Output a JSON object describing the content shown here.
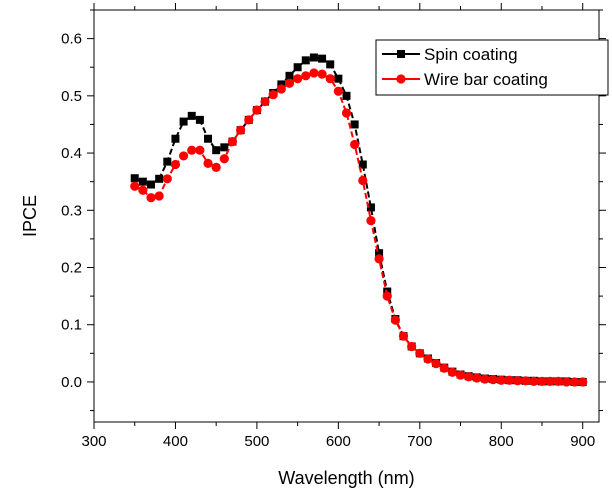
{
  "chart_data": {
    "type": "line",
    "title": "",
    "xlabel": "Wavelength (nm)",
    "ylabel": "IPCE",
    "xlim": [
      300,
      920
    ],
    "ylim": [
      -0.07,
      0.65
    ],
    "xticks": [
      300,
      400,
      500,
      600,
      700,
      800,
      900
    ],
    "yticks": [
      0.0,
      0.1,
      0.2,
      0.3,
      0.4,
      0.5,
      0.6
    ],
    "xtick_labels": [
      "300",
      "400",
      "500",
      "600",
      "700",
      "800",
      "900"
    ],
    "ytick_labels": [
      "0.0",
      "0.1",
      "0.2",
      "0.3",
      "0.4",
      "0.5",
      "0.6"
    ],
    "grid": false,
    "legend_position": "top-right",
    "x": [
      350,
      360,
      370,
      380,
      390,
      400,
      410,
      420,
      430,
      440,
      450,
      460,
      470,
      480,
      490,
      500,
      510,
      520,
      530,
      540,
      550,
      560,
      570,
      580,
      590,
      600,
      610,
      620,
      630,
      640,
      650,
      660,
      670,
      680,
      690,
      700,
      710,
      720,
      730,
      740,
      750,
      760,
      770,
      780,
      790,
      800,
      810,
      820,
      830,
      840,
      850,
      860,
      870,
      880,
      890,
      900
    ],
    "series": [
      {
        "name": "Spin coating",
        "color": "#000000",
        "marker": "square",
        "values": [
          0.356,
          0.35,
          0.345,
          0.355,
          0.385,
          0.425,
          0.455,
          0.465,
          0.458,
          0.425,
          0.405,
          0.41,
          0.42,
          0.44,
          0.458,
          0.475,
          0.49,
          0.505,
          0.52,
          0.535,
          0.55,
          0.562,
          0.567,
          0.565,
          0.555,
          0.53,
          0.5,
          0.45,
          0.38,
          0.305,
          0.225,
          0.158,
          0.11,
          0.08,
          0.062,
          0.05,
          0.041,
          0.033,
          0.025,
          0.018,
          0.013,
          0.01,
          0.008,
          0.006,
          0.005,
          0.004,
          0.003,
          0.003,
          0.002,
          0.002,
          0.001,
          0.001,
          0.001,
          0.001,
          0.0,
          0.0
        ]
      },
      {
        "name": "Wire bar coating",
        "color": "#ff0000",
        "marker": "circle",
        "values": [
          0.342,
          0.335,
          0.322,
          0.325,
          0.355,
          0.38,
          0.395,
          0.405,
          0.405,
          0.382,
          0.375,
          0.39,
          0.42,
          0.44,
          0.458,
          0.475,
          0.49,
          0.502,
          0.512,
          0.522,
          0.53,
          0.535,
          0.54,
          0.538,
          0.53,
          0.508,
          0.47,
          0.415,
          0.352,
          0.282,
          0.215,
          0.15,
          0.108,
          0.08,
          0.062,
          0.05,
          0.04,
          0.032,
          0.024,
          0.017,
          0.012,
          0.009,
          0.007,
          0.005,
          0.004,
          0.003,
          0.003,
          0.002,
          0.002,
          0.001,
          0.001,
          0.001,
          0.001,
          0.0,
          0.0,
          0.0
        ]
      }
    ]
  }
}
